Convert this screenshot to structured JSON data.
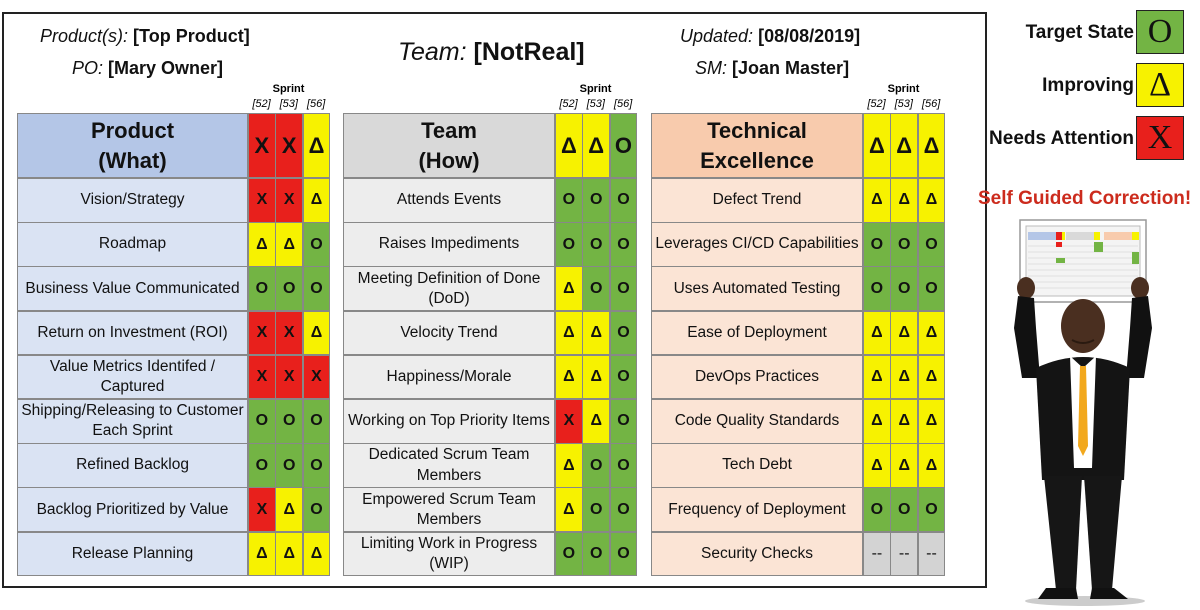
{
  "header": {
    "products_label": "Product(s):",
    "products_value": "[Top Product]",
    "po_label": "PO:",
    "po_value": "[Mary Owner]",
    "team_label": "Team:",
    "team_value": "[NotReal]",
    "updated_label": "Updated:",
    "updated_value": "[08/08/2019]",
    "sm_label": "SM:",
    "sm_value": "[Joan Master]"
  },
  "sprint_label": "Sprint",
  "sprints": [
    "[52]",
    "[53]",
    "[56]"
  ],
  "status_symbols": {
    "O": "O",
    "D": "Δ",
    "X": "X",
    "N": "--"
  },
  "groups": [
    {
      "title_line1": "Product",
      "title_line2": "(What)",
      "header_status": [
        "X",
        "X",
        "D"
      ],
      "header_bg": "#b4c6e7",
      "row_bg": "#dae3f3",
      "rows": [
        {
          "label": "Vision/Strategy",
          "status": [
            "X",
            "X",
            "D"
          ]
        },
        {
          "label": "Roadmap",
          "status": [
            "D",
            "D",
            "O"
          ]
        },
        {
          "label": "Business Value Communicated",
          "status": [
            "O",
            "O",
            "O"
          ]
        },
        {
          "label": "Return on Investment (ROI)",
          "status": [
            "X",
            "X",
            "D"
          ]
        },
        {
          "label": "Value Metrics Identifed / Captured",
          "status": [
            "X",
            "X",
            "X"
          ]
        },
        {
          "label": "Shipping/Releasing to Customer Each Sprint",
          "status": [
            "O",
            "O",
            "O"
          ]
        },
        {
          "label": "Refined Backlog",
          "status": [
            "O",
            "O",
            "O"
          ]
        },
        {
          "label": "Backlog Prioritized by Value",
          "status": [
            "X",
            "D",
            "O"
          ]
        },
        {
          "label": "Release Planning",
          "status": [
            "D",
            "D",
            "D"
          ]
        }
      ]
    },
    {
      "title_line1": "Team",
      "title_line2": "(How)",
      "header_status": [
        "D",
        "D",
        "O"
      ],
      "header_bg": "#d9d9d9",
      "row_bg": "#ededed",
      "rows": [
        {
          "label": "Attends Events",
          "status": [
            "O",
            "O",
            "O"
          ]
        },
        {
          "label": "Raises Impediments",
          "status": [
            "O",
            "O",
            "O"
          ]
        },
        {
          "label": "Meeting Definition of Done (DoD)",
          "status": [
            "D",
            "O",
            "O"
          ]
        },
        {
          "label": "Velocity Trend",
          "status": [
            "D",
            "D",
            "O"
          ]
        },
        {
          "label": "Happiness/Morale",
          "status": [
            "D",
            "D",
            "O"
          ]
        },
        {
          "label": "Working on Top Priority Items",
          "status": [
            "X",
            "D",
            "O"
          ]
        },
        {
          "label": "Dedicated Scrum Team Members",
          "status": [
            "D",
            "O",
            "O"
          ]
        },
        {
          "label": "Empowered Scrum Team Members",
          "status": [
            "D",
            "O",
            "O"
          ]
        },
        {
          "label": "Limiting Work in Progress (WIP)",
          "status": [
            "O",
            "O",
            "O"
          ]
        }
      ]
    },
    {
      "title_line1": "Technical",
      "title_line2": "Excellence",
      "header_status": [
        "D",
        "D",
        "D"
      ],
      "header_bg": "#f8cbad",
      "row_bg": "#fbe4d5",
      "rows": [
        {
          "label": "Defect Trend",
          "status": [
            "D",
            "D",
            "D"
          ]
        },
        {
          "label": "Leverages CI/CD Capabilities",
          "status": [
            "O",
            "O",
            "O"
          ]
        },
        {
          "label": "Uses Automated Testing",
          "status": [
            "O",
            "O",
            "O"
          ]
        },
        {
          "label": "Ease of Deployment",
          "status": [
            "D",
            "D",
            "D"
          ]
        },
        {
          "label": "DevOps Practices",
          "status": [
            "D",
            "D",
            "D"
          ]
        },
        {
          "label": "Code Quality Standards",
          "status": [
            "D",
            "D",
            "D"
          ]
        },
        {
          "label": "Tech Debt",
          "status": [
            "D",
            "D",
            "D"
          ]
        },
        {
          "label": "Frequency of Deployment",
          "status": [
            "O",
            "O",
            "O"
          ]
        },
        {
          "label": "Security Checks",
          "status": [
            "N",
            "N",
            "N"
          ]
        }
      ]
    }
  ],
  "legend": [
    {
      "label": "Target State",
      "symbol": "O",
      "color": "#73b444"
    },
    {
      "label": "Improving",
      "symbol": "Δ",
      "color": "#f7f200"
    },
    {
      "label": "Needs Attention",
      "symbol": "X",
      "color": "#e8201c"
    }
  ],
  "slogan": "Self Guided Correction!",
  "colors": {
    "green": "#73b444",
    "yellow": "#f7f200",
    "red": "#e8201c",
    "gray": "#d3d3d3"
  }
}
